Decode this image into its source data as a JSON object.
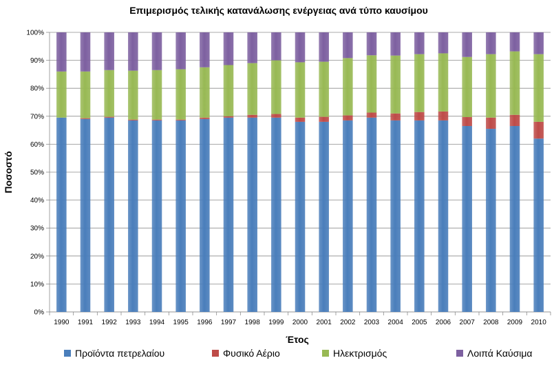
{
  "chart_data": {
    "type": "bar",
    "stacked": true,
    "title": "Επιμερισμός τελικής κατανάλωσης ενέργειας ανά τύπο καυσίμου",
    "xlabel": "Έτος",
    "ylabel": "Ποσοστό",
    "ylim": [
      0,
      100
    ],
    "y_ticks": [
      "0%",
      "10%",
      "20%",
      "30%",
      "40%",
      "50%",
      "60%",
      "70%",
      "80%",
      "90%",
      "100%"
    ],
    "grid": true,
    "legend_position": "bottom",
    "categories": [
      "1990",
      "1991",
      "1992",
      "1993",
      "1994",
      "1995",
      "1996",
      "1997",
      "1998",
      "1999",
      "2000",
      "2001",
      "2002",
      "2003",
      "2004",
      "2005",
      "2006",
      "2007",
      "2008",
      "2009",
      "2010"
    ],
    "series": [
      {
        "name": "Προϊόντα πετρελαίου",
        "color": "#4a7ebb",
        "values": [
          69.5,
          69.0,
          69.5,
          68.5,
          68.5,
          68.5,
          69.0,
          69.5,
          69.5,
          69.5,
          68.0,
          68.0,
          68.5,
          69.5,
          68.5,
          68.5,
          68.5,
          66.5,
          65.5,
          66.5,
          62.0
        ]
      },
      {
        "name": "Φυσικό Αέριο",
        "color": "#be4b48",
        "values": [
          0.0,
          0.3,
          0.3,
          0.3,
          0.3,
          0.3,
          0.5,
          0.5,
          1.0,
          1.3,
          1.5,
          1.8,
          1.8,
          1.8,
          2.5,
          3.0,
          3.2,
          3.2,
          4.0,
          4.0,
          6.0
        ]
      },
      {
        "name": "Ηλεκτρισμός",
        "color": "#98b954",
        "values": [
          16.5,
          16.7,
          16.7,
          17.5,
          17.7,
          18.0,
          18.0,
          18.3,
          18.5,
          19.2,
          19.8,
          19.7,
          20.5,
          20.5,
          20.7,
          20.7,
          20.8,
          21.5,
          22.7,
          22.7,
          24.2
        ]
      },
      {
        "name": "Λοιπά Καύσιμα",
        "color": "#7d60a0",
        "values": [
          14.0,
          14.0,
          13.5,
          13.7,
          13.5,
          13.2,
          12.5,
          11.7,
          11.0,
          10.0,
          10.7,
          10.5,
          9.2,
          8.2,
          8.3,
          7.8,
          7.5,
          8.8,
          7.8,
          6.8,
          7.8
        ]
      }
    ]
  }
}
